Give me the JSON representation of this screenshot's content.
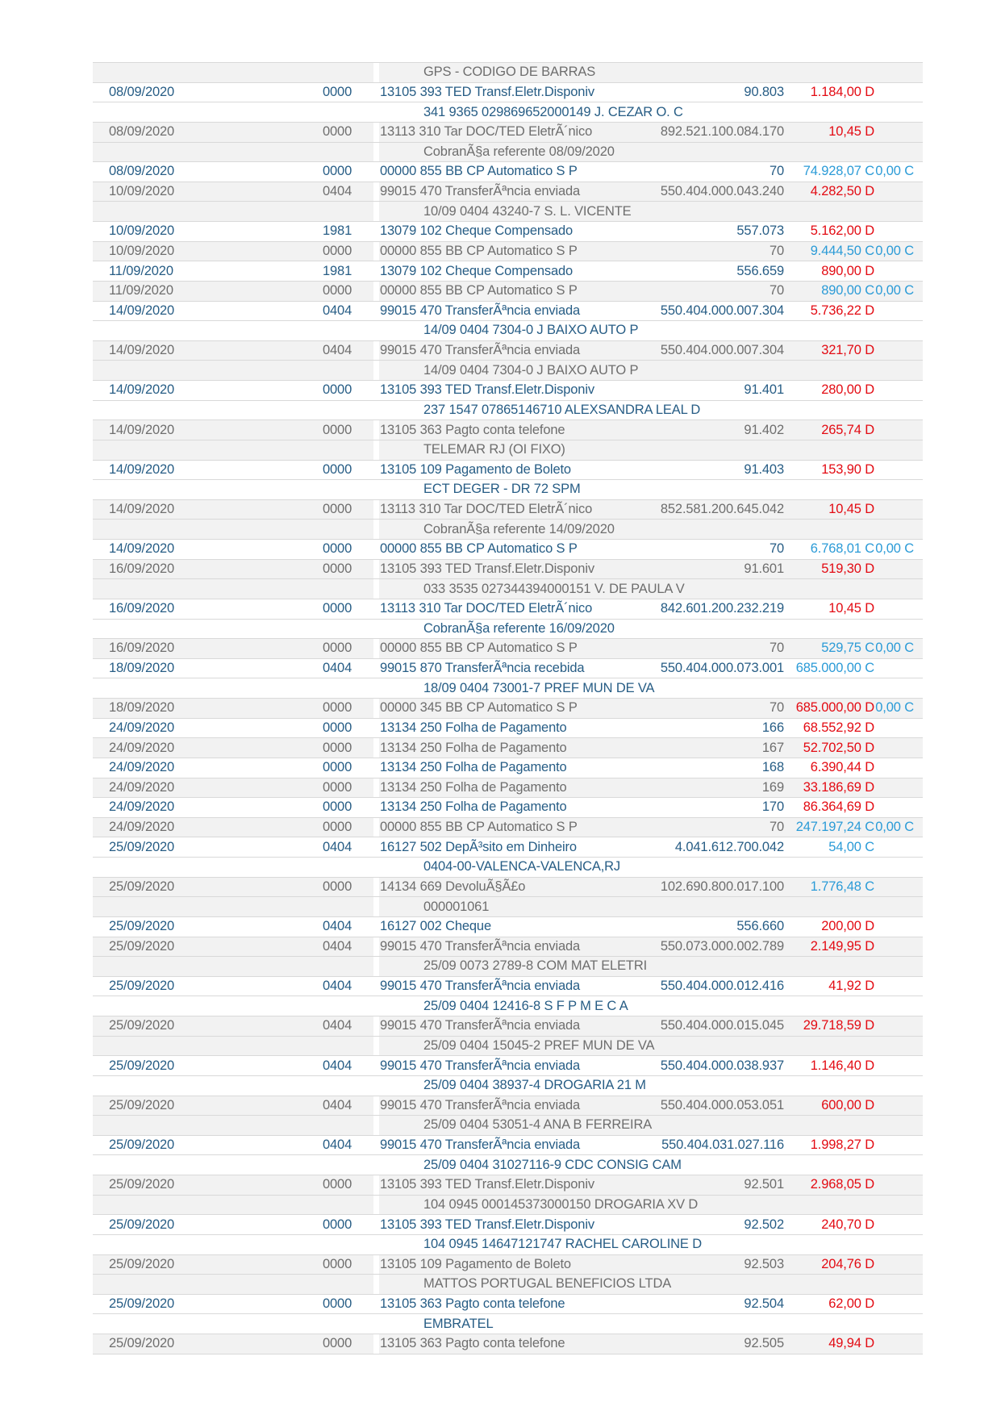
{
  "document_type": "bank-statement-page",
  "colors": {
    "text_blue": "#275d85",
    "text_gray": "#6e6e6e",
    "debit_red": "#e30b13",
    "credit_blue": "#2b9bd7",
    "row_shade": "#f2f2f2",
    "row_border": "#d9d9d9"
  },
  "rows": [
    {
      "type": "cont",
      "text": "GPS - CODIGO DE BARRAS"
    },
    {
      "type": "txn",
      "date": "08/09/2020",
      "branch": "0000",
      "desc": "13105 393 TED Transf.Eletr.Disponiv",
      "doc": "90.803",
      "value": "1.184,00 D",
      "balance": ""
    },
    {
      "type": "cont",
      "text": "341 9365 029869652000149 J. CEZAR O. C"
    },
    {
      "type": "txn",
      "date": "08/09/2020",
      "branch": "0000",
      "desc": "13113 310 Tar DOC/TED EletrÃ´nico",
      "doc": "892.521.100.084.170",
      "value": "10,45 D",
      "balance": ""
    },
    {
      "type": "cont",
      "text": "CobranÃ§a referente 08/09/2020"
    },
    {
      "type": "txn",
      "date": "08/09/2020",
      "branch": "0000",
      "desc": "00000 855 BB CP Automatico S P",
      "doc": "70",
      "value": "74.928,07 C",
      "balance": "0,00 C"
    },
    {
      "type": "txn",
      "date": "10/09/2020",
      "branch": "0404",
      "desc": "99015 470 TransferÃªncia enviada",
      "doc": "550.404.000.043.240",
      "value": "4.282,50 D",
      "balance": ""
    },
    {
      "type": "cont",
      "text": "10/09 0404 43240-7 S. L. VICENTE"
    },
    {
      "type": "txn",
      "date": "10/09/2020",
      "branch": "1981",
      "desc": "13079 102 Cheque Compensado",
      "doc": "557.073",
      "value": "5.162,00 D",
      "balance": ""
    },
    {
      "type": "txn",
      "date": "10/09/2020",
      "branch": "0000",
      "desc": "00000 855 BB CP Automatico S P",
      "doc": "70",
      "value": "9.444,50 C",
      "balance": "0,00 C"
    },
    {
      "type": "txn",
      "date": "11/09/2020",
      "branch": "1981",
      "desc": "13079 102 Cheque Compensado",
      "doc": "556.659",
      "value": "890,00 D",
      "balance": ""
    },
    {
      "type": "txn",
      "date": "11/09/2020",
      "branch": "0000",
      "desc": "00000 855 BB CP Automatico S P",
      "doc": "70",
      "value": "890,00 C",
      "balance": "0,00 C"
    },
    {
      "type": "txn",
      "date": "14/09/2020",
      "branch": "0404",
      "desc": "99015 470 TransferÃªncia enviada",
      "doc": "550.404.000.007.304",
      "value": "5.736,22 D",
      "balance": ""
    },
    {
      "type": "cont",
      "text": "14/09 0404 7304-0 J BAIXO AUTO P"
    },
    {
      "type": "txn",
      "date": "14/09/2020",
      "branch": "0404",
      "desc": "99015 470 TransferÃªncia enviada",
      "doc": "550.404.000.007.304",
      "value": "321,70 D",
      "balance": ""
    },
    {
      "type": "cont",
      "text": "14/09 0404 7304-0 J BAIXO AUTO P"
    },
    {
      "type": "txn",
      "date": "14/09/2020",
      "branch": "0000",
      "desc": "13105 393 TED Transf.Eletr.Disponiv",
      "doc": "91.401",
      "value": "280,00 D",
      "balance": ""
    },
    {
      "type": "cont",
      "text": "237 1547 07865146710 ALEXSANDRA LEAL D"
    },
    {
      "type": "txn",
      "date": "14/09/2020",
      "branch": "0000",
      "desc": "13105 363 Pagto conta telefone",
      "doc": "91.402",
      "value": "265,74 D",
      "balance": ""
    },
    {
      "type": "cont",
      "text": "TELEMAR RJ (OI FIXO)"
    },
    {
      "type": "txn",
      "date": "14/09/2020",
      "branch": "0000",
      "desc": "13105 109 Pagamento de Boleto",
      "doc": "91.403",
      "value": "153,90 D",
      "balance": ""
    },
    {
      "type": "cont",
      "text": "ECT DEGER - DR 72 SPM"
    },
    {
      "type": "txn",
      "date": "14/09/2020",
      "branch": "0000",
      "desc": "13113 310 Tar DOC/TED EletrÃ´nico",
      "doc": "852.581.200.645.042",
      "value": "10,45 D",
      "balance": ""
    },
    {
      "type": "cont",
      "text": "CobranÃ§a referente 14/09/2020"
    },
    {
      "type": "txn",
      "date": "14/09/2020",
      "branch": "0000",
      "desc": "00000 855 BB CP Automatico S P",
      "doc": "70",
      "value": "6.768,01 C",
      "balance": "0,00 C"
    },
    {
      "type": "txn",
      "date": "16/09/2020",
      "branch": "0000",
      "desc": "13105 393 TED Transf.Eletr.Disponiv",
      "doc": "91.601",
      "value": "519,30 D",
      "balance": ""
    },
    {
      "type": "cont",
      "text": "033 3535 027344394000151 V. DE PAULA V"
    },
    {
      "type": "txn",
      "date": "16/09/2020",
      "branch": "0000",
      "desc": "13113 310 Tar DOC/TED EletrÃ´nico",
      "doc": "842.601.200.232.219",
      "value": "10,45 D",
      "balance": ""
    },
    {
      "type": "cont",
      "text": "CobranÃ§a referente 16/09/2020"
    },
    {
      "type": "txn",
      "date": "16/09/2020",
      "branch": "0000",
      "desc": "00000 855 BB CP Automatico S P",
      "doc": "70",
      "value": "529,75 C",
      "balance": "0,00 C"
    },
    {
      "type": "txn",
      "date": "18/09/2020",
      "branch": "0404",
      "desc": "99015 870 TransferÃªncia recebida",
      "doc": "550.404.000.073.001",
      "value": "685.000,00 C",
      "balance": ""
    },
    {
      "type": "cont",
      "text": "18/09 0404 73001-7 PREF MUN DE VA"
    },
    {
      "type": "txn",
      "date": "18/09/2020",
      "branch": "0000",
      "desc": "00000 345 BB CP Automatico S P",
      "doc": "70",
      "value": "685.000,00 D",
      "balance": "0,00 C"
    },
    {
      "type": "txn",
      "date": "24/09/2020",
      "branch": "0000",
      "desc": "13134 250 Folha de Pagamento",
      "doc": "166",
      "value": "68.552,92 D",
      "balance": ""
    },
    {
      "type": "txn",
      "date": "24/09/2020",
      "branch": "0000",
      "desc": "13134 250 Folha de Pagamento",
      "doc": "167",
      "value": "52.702,50 D",
      "balance": ""
    },
    {
      "type": "txn",
      "date": "24/09/2020",
      "branch": "0000",
      "desc": "13134 250 Folha de Pagamento",
      "doc": "168",
      "value": "6.390,44 D",
      "balance": ""
    },
    {
      "type": "txn",
      "date": "24/09/2020",
      "branch": "0000",
      "desc": "13134 250 Folha de Pagamento",
      "doc": "169",
      "value": "33.186,69 D",
      "balance": ""
    },
    {
      "type": "txn",
      "date": "24/09/2020",
      "branch": "0000",
      "desc": "13134 250 Folha de Pagamento",
      "doc": "170",
      "value": "86.364,69 D",
      "balance": ""
    },
    {
      "type": "txn",
      "date": "24/09/2020",
      "branch": "0000",
      "desc": "00000 855 BB CP Automatico S P",
      "doc": "70",
      "value": "247.197,24 C",
      "balance": "0,00 C"
    },
    {
      "type": "txn",
      "date": "25/09/2020",
      "branch": "0404",
      "desc": "16127 502 DepÃ³sito em Dinheiro",
      "doc": "4.041.612.700.042",
      "value": "54,00 C",
      "balance": ""
    },
    {
      "type": "cont",
      "text": "0404-00-VALENCA-VALENCA,RJ"
    },
    {
      "type": "txn",
      "date": "25/09/2020",
      "branch": "0000",
      "desc": "14134 669 DevoluÃ§Ã£o",
      "doc": "102.690.800.017.100",
      "value": "1.776,48 C",
      "balance": ""
    },
    {
      "type": "cont",
      "text": "000001061"
    },
    {
      "type": "txn",
      "date": "25/09/2020",
      "branch": "0404",
      "desc": "16127 002 Cheque",
      "doc": "556.660",
      "value": "200,00 D",
      "balance": ""
    },
    {
      "type": "txn",
      "date": "25/09/2020",
      "branch": "0404",
      "desc": "99015 470 TransferÃªncia enviada",
      "doc": "550.073.000.002.789",
      "value": "2.149,95 D",
      "balance": ""
    },
    {
      "type": "cont",
      "text": "25/09 0073 2789-8 COM MAT ELETRI"
    },
    {
      "type": "txn",
      "date": "25/09/2020",
      "branch": "0404",
      "desc": "99015 470 TransferÃªncia enviada",
      "doc": "550.404.000.012.416",
      "value": "41,92 D",
      "balance": ""
    },
    {
      "type": "cont",
      "text": "25/09 0404 12416-8 S F P M E C A"
    },
    {
      "type": "txn",
      "date": "25/09/2020",
      "branch": "0404",
      "desc": "99015 470 TransferÃªncia enviada",
      "doc": "550.404.000.015.045",
      "value": "29.718,59 D",
      "balance": ""
    },
    {
      "type": "cont",
      "text": "25/09 0404 15045-2 PREF MUN DE VA"
    },
    {
      "type": "txn",
      "date": "25/09/2020",
      "branch": "0404",
      "desc": "99015 470 TransferÃªncia enviada",
      "doc": "550.404.000.038.937",
      "value": "1.146,40 D",
      "balance": ""
    },
    {
      "type": "cont",
      "text": "25/09 0404 38937-4 DROGARIA 21 M"
    },
    {
      "type": "txn",
      "date": "25/09/2020",
      "branch": "0404",
      "desc": "99015 470 TransferÃªncia enviada",
      "doc": "550.404.000.053.051",
      "value": "600,00 D",
      "balance": ""
    },
    {
      "type": "cont",
      "text": "25/09 0404 53051-4 ANA B FERREIRA"
    },
    {
      "type": "txn",
      "date": "25/09/2020",
      "branch": "0404",
      "desc": "99015 470 TransferÃªncia enviada",
      "doc": "550.404.031.027.116",
      "value": "1.998,27 D",
      "balance": ""
    },
    {
      "type": "cont",
      "text": "25/09 0404 31027116-9 CDC CONSIG CAM"
    },
    {
      "type": "txn",
      "date": "25/09/2020",
      "branch": "0000",
      "desc": "13105 393 TED Transf.Eletr.Disponiv",
      "doc": "92.501",
      "value": "2.968,05 D",
      "balance": ""
    },
    {
      "type": "cont",
      "text": "104 0945 000145373000150 DROGARIA XV D"
    },
    {
      "type": "txn",
      "date": "25/09/2020",
      "branch": "0000",
      "desc": "13105 393 TED Transf.Eletr.Disponiv",
      "doc": "92.502",
      "value": "240,70 D",
      "balance": ""
    },
    {
      "type": "cont",
      "text": "104 0945 14647121747 RACHEL CAROLINE D"
    },
    {
      "type": "txn",
      "date": "25/09/2020",
      "branch": "0000",
      "desc": "13105 109 Pagamento de Boleto",
      "doc": "92.503",
      "value": "204,76 D",
      "balance": ""
    },
    {
      "type": "cont",
      "text": "MATTOS PORTUGAL BENEFICIOS LTDA"
    },
    {
      "type": "txn",
      "date": "25/09/2020",
      "branch": "0000",
      "desc": "13105 363 Pagto conta telefone",
      "doc": "92.504",
      "value": "62,00 D",
      "balance": ""
    },
    {
      "type": "cont",
      "text": "EMBRATEL"
    },
    {
      "type": "txn",
      "date": "25/09/2020",
      "branch": "0000",
      "desc": "13105 363 Pagto conta telefone",
      "doc": "92.505",
      "value": "49,94 D",
      "balance": ""
    }
  ]
}
